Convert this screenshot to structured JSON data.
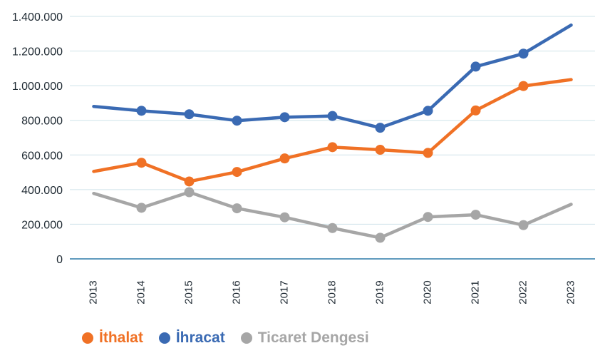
{
  "chart_data": {
    "type": "line",
    "title": "",
    "xlabel": "",
    "ylabel": "",
    "ylim": [
      0,
      1400000
    ],
    "yticks": [
      0,
      200000,
      400000,
      600000,
      800000,
      1000000,
      1200000,
      1400000
    ],
    "ytick_labels": [
      "0",
      "200.000",
      "400.000",
      "600.000",
      "800.000",
      "1.000.000",
      "1.200.000",
      "1.400.000"
    ],
    "categories": [
      "2013",
      "2014",
      "2015",
      "2016",
      "2017",
      "2018",
      "2019",
      "2020",
      "2021",
      "2022",
      "2023"
    ],
    "grid": true,
    "legend_position": "bottom-left",
    "series": [
      {
        "name": "İthalat",
        "color": "#f07125",
        "markers": [
          false,
          true,
          true,
          true,
          true,
          true,
          true,
          true,
          true,
          true,
          false
        ],
        "values": [
          505000,
          555000,
          447000,
          502000,
          580000,
          645000,
          630000,
          612000,
          857000,
          998000,
          1035000
        ]
      },
      {
        "name": "İhracat",
        "color": "#3a6ab3",
        "markers": [
          false,
          true,
          true,
          true,
          true,
          true,
          true,
          true,
          true,
          true,
          false
        ],
        "values": [
          880000,
          855000,
          835000,
          798000,
          818000,
          825000,
          757000,
          855000,
          1110000,
          1185000,
          1350000
        ]
      },
      {
        "name": "Ticaret Dengesi",
        "color": "#a6a6a6",
        "markers": [
          false,
          true,
          true,
          true,
          true,
          true,
          true,
          true,
          true,
          true,
          false
        ],
        "values": [
          378000,
          295000,
          385000,
          292000,
          240000,
          178000,
          122000,
          242000,
          255000,
          195000,
          315000
        ]
      }
    ]
  }
}
